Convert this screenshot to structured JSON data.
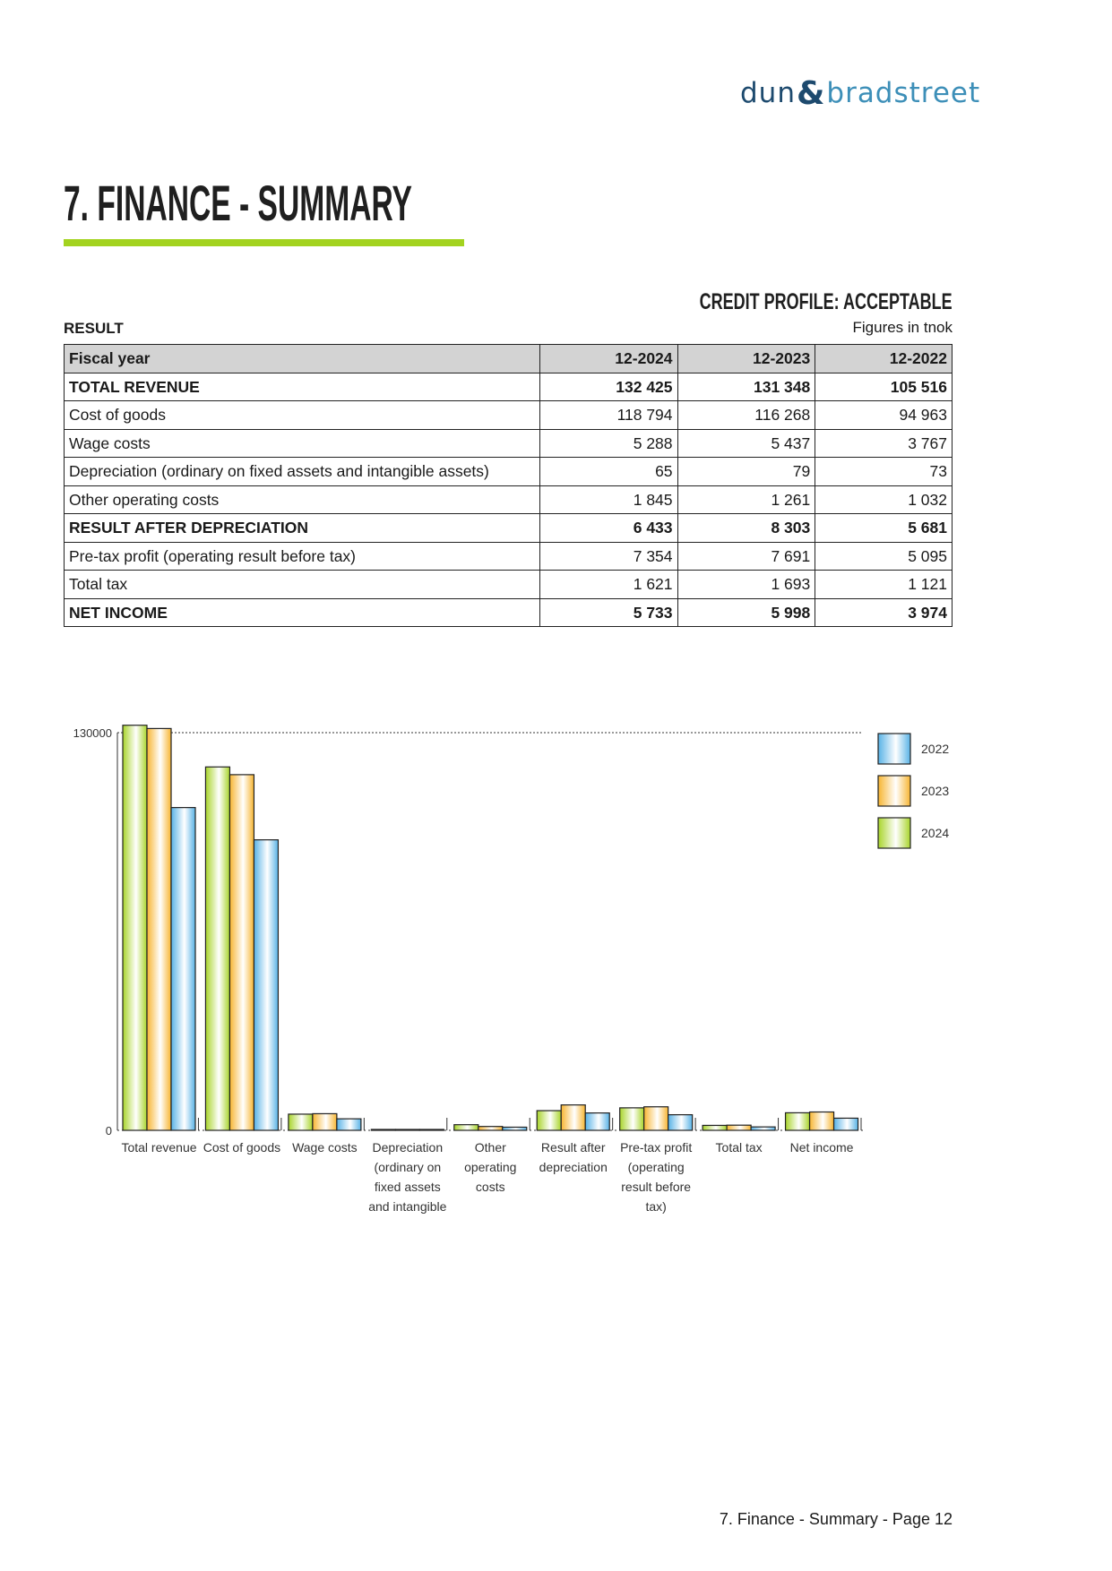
{
  "logo": {
    "left": "dun",
    "amp": "&",
    "right": "bradstreet"
  },
  "page_title": "7. FINANCE - SUMMARY",
  "credit_profile": "CREDIT PROFILE: ACCEPTABLE",
  "section_label": "RESULT",
  "units_note": "Figures in tnok",
  "table": {
    "headers": [
      "Fiscal year",
      "12-2024",
      "12-2023",
      "12-2022"
    ],
    "rows": [
      {
        "label": "TOTAL REVENUE",
        "bold": true,
        "values": [
          "132 425",
          "131 348",
          "105 516"
        ]
      },
      {
        "label": "Cost of goods",
        "bold": false,
        "values": [
          "118 794",
          "116 268",
          "94 963"
        ]
      },
      {
        "label": "Wage costs",
        "bold": false,
        "values": [
          "5 288",
          "5 437",
          "3 767"
        ]
      },
      {
        "label": "Depreciation (ordinary on fixed assets and intangible assets)",
        "bold": false,
        "values": [
          "65",
          "79",
          "73"
        ]
      },
      {
        "label": "Other operating costs",
        "bold": false,
        "values": [
          "1 845",
          "1 261",
          "1 032"
        ]
      },
      {
        "label": "RESULT AFTER DEPRECIATION",
        "bold": true,
        "values": [
          "6 433",
          "8 303",
          "5 681"
        ]
      },
      {
        "label": "Pre-tax profit (operating result before tax)",
        "bold": false,
        "values": [
          "7 354",
          "7 691",
          "5 095"
        ]
      },
      {
        "label": "Total tax",
        "bold": false,
        "values": [
          "1 621",
          "1 693",
          "1 121"
        ]
      },
      {
        "label": "NET INCOME",
        "bold": true,
        "values": [
          "5 733",
          "5 998",
          "3 974"
        ]
      }
    ]
  },
  "chart_data": {
    "type": "bar",
    "categories": [
      [
        "Total revenue"
      ],
      [
        "Cost of goods"
      ],
      [
        "Wage costs"
      ],
      [
        "Depreciation",
        "(ordinary on",
        "fixed assets",
        "and intangible"
      ],
      [
        "Other",
        "operating",
        "costs"
      ],
      [
        "Result after",
        "depreciation"
      ],
      [
        "Pre-tax profit",
        "(operating",
        "result before",
        "tax)"
      ],
      [
        "Total tax"
      ],
      [
        "Net income"
      ]
    ],
    "series": [
      {
        "name": "2024",
        "color": "#a8d42a",
        "values": [
          132425,
          118794,
          5288,
          65,
          1845,
          6433,
          7354,
          1621,
          5733
        ]
      },
      {
        "name": "2023",
        "color": "#f7b531",
        "values": [
          131348,
          116268,
          5437,
          79,
          1261,
          8303,
          7691,
          1693,
          5998
        ]
      },
      {
        "name": "2022",
        "color": "#58b2e6",
        "values": [
          105516,
          94963,
          3767,
          73,
          1032,
          5681,
          5095,
          1121,
          3974
        ]
      }
    ],
    "yticks": [
      "130000",
      "0"
    ],
    "ylim": [
      0,
      130000
    ],
    "legend_order": [
      "2022",
      "2023",
      "2024"
    ],
    "legend_position": "right",
    "grid": "dotted line at 130000"
  },
  "footer": "7. Finance - Summary - Page 12"
}
